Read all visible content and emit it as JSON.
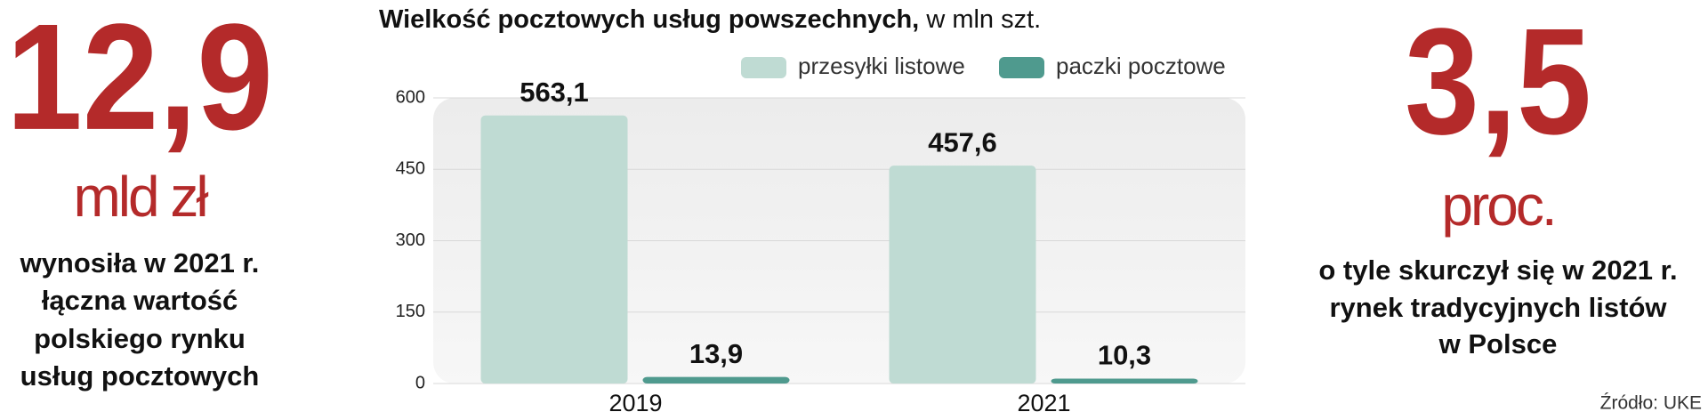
{
  "left_panel": {
    "number": "12,9",
    "unit": "mld zł",
    "lines": [
      "wynosiła w 2021 r.",
      "łączna wartość",
      "polskiego rynku",
      "usług pocztowych"
    ]
  },
  "chart_data": {
    "type": "bar",
    "title": "Wielkość pocztowych usług powszechnych,",
    "title_unit": "w mln szt.",
    "categories": [
      "2019",
      "2021"
    ],
    "series": [
      {
        "name": "przesyłki listowe",
        "color": "#bfdbd3",
        "values": [
          563.1,
          457.6
        ],
        "value_labels": [
          "563,1",
          "457,6"
        ]
      },
      {
        "name": "paczki pocztowe",
        "color": "#4f9a8e",
        "values": [
          13.9,
          10.3
        ],
        "value_labels": [
          "13,9",
          "10,3"
        ]
      }
    ],
    "ylim": [
      0,
      600
    ],
    "yticks": [
      0,
      150,
      300,
      450,
      600
    ],
    "grid": true,
    "legend": "top-right"
  },
  "right_panel": {
    "number": "3,5",
    "unit": "proc.",
    "lines": [
      "o tyle skurczył się w 2021 r.",
      "rynek tradycyjnych listów",
      "w Polsce"
    ]
  },
  "source": "Źródło: UKE"
}
